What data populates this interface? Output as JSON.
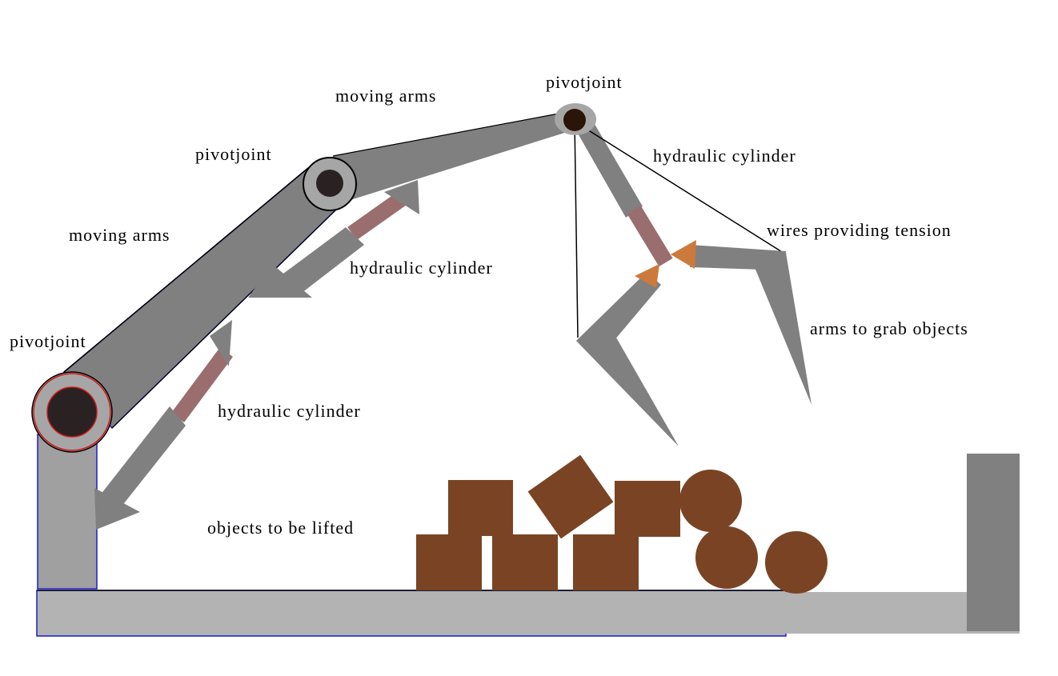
{
  "labels": {
    "pivot_top": "pivotjoint",
    "pivot_middle": "pivotjoint",
    "pivot_base": "pivotjoint",
    "moving_arms_upper": "moving arms",
    "moving_arms_lower": "moving arms",
    "hydraulic_top": "hydraulic cylinder",
    "hydraulic_middle": "hydraulic cylinder",
    "hydraulic_lower": "hydraulic cylinder",
    "wires": "wires providing tension",
    "grab_arms": "arms to grab objects",
    "objects": "objects to be lifted"
  },
  "colors": {
    "arm": "#808080",
    "base_column": "#a0a0a0",
    "floor": "#b3b3b3",
    "piston_rod": "#9a6e6e",
    "joint_ring": "#a6a6a6",
    "joint_core": "#2a2222",
    "cargo": "#7a4424",
    "gripper_tip": "#cc7a3c",
    "outline_blue": "#1a1acc",
    "outline_red": "#cc1a1a"
  }
}
